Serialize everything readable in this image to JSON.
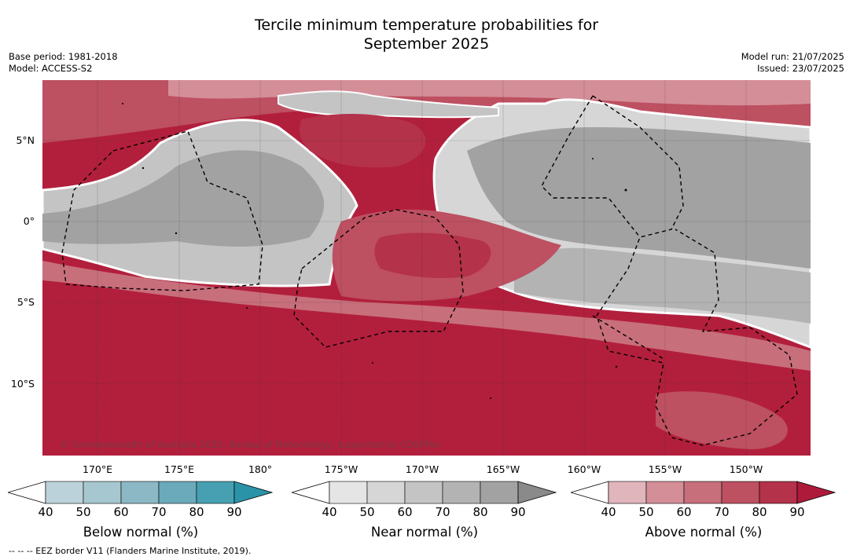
{
  "title": {
    "line1": "Tercile minimum temperature probabilities for",
    "line2": "September 2025"
  },
  "meta": {
    "base_period": "Base period: 1981-2018",
    "model": "Model: ACCESS-S2",
    "model_run": "Model run: 21/07/2025",
    "issued": "Issued: 23/07/2025"
  },
  "map": {
    "lat_labels": [
      "5°N",
      "0°",
      "5°S",
      "10°S"
    ],
    "lon_labels": [
      "170°E",
      "175°E",
      "180°",
      "175°W",
      "170°W",
      "165°W",
      "160°W",
      "155°W",
      "150°W"
    ],
    "copyright": "© Commonwealth of Australia 2025, Bureau of Meteorology, supported by COSPPac"
  },
  "legend": {
    "below": {
      "label": "Below normal (%)",
      "ticks": [
        "40",
        "50",
        "60",
        "70",
        "80",
        "90"
      ],
      "colors": [
        "#bcd2da",
        "#a6c7cf",
        "#8bb8c4",
        "#6aaaba",
        "#46a0b1",
        "#2b93a8"
      ]
    },
    "near": {
      "label": "Near normal (%)",
      "ticks": [
        "40",
        "50",
        "60",
        "70",
        "80",
        "90"
      ],
      "colors": [
        "#e5e5e5",
        "#d6d6d6",
        "#c4c4c4",
        "#b3b3b3",
        "#a2a2a2",
        "#8a8a8a"
      ]
    },
    "above": {
      "label": "Above normal (%)",
      "ticks": [
        "40",
        "50",
        "60",
        "70",
        "80",
        "90"
      ],
      "colors": [
        "#e0b5bc",
        "#d48e98",
        "#c86f7c",
        "#bd5061",
        "#b4324a",
        "#ae1b3a"
      ]
    }
  },
  "footnote": "--  --  -- EEZ border V11 (Flanders Marine Institute, 2019)."
}
